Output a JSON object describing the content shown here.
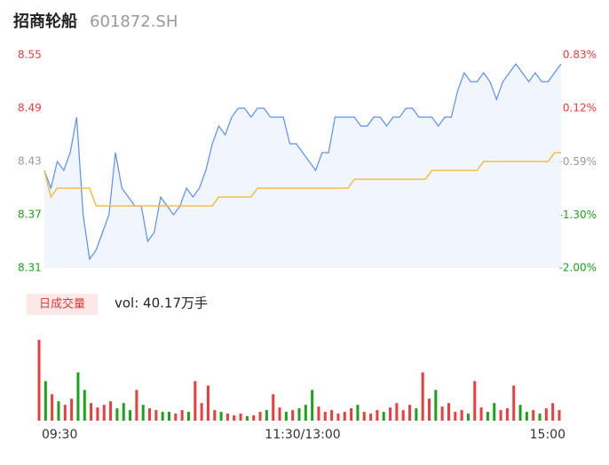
{
  "chart_data": {
    "type": "intraday",
    "title": "招商轮船",
    "subtitle": "601872.SH",
    "price_color": "#5b8ff9",
    "average_color": "#f5bd48",
    "up_color": "#ee3b3b",
    "down_color": "#1aa31a",
    "flat_color": "#999999",
    "ylim": [
      8.31,
      8.55
    ],
    "yticks": [
      8.55,
      8.49,
      8.43,
      8.37,
      8.31
    ],
    "y2lim": [
      -2.0,
      0.83
    ],
    "y2ticks": [
      {
        "value": 0.83,
        "label": "0.83%"
      },
      {
        "value": 0.12,
        "label": "0.12%"
      },
      {
        "value": -0.59,
        "label": "-0.59%"
      },
      {
        "value": -1.3,
        "label": "-1.30%"
      },
      {
        "value": -2.0,
        "label": "-2.00%"
      }
    ],
    "xlim": [
      0,
      80
    ],
    "xticks": [
      {
        "value": 0,
        "label": "09:30"
      },
      {
        "value": 40,
        "label": "11:30/13:00"
      },
      {
        "value": 80,
        "label": "15:00"
      }
    ],
    "price": [
      8.42,
      8.4,
      8.43,
      8.42,
      8.44,
      8.48,
      8.37,
      8.32,
      8.33,
      8.35,
      8.37,
      8.44,
      8.4,
      8.39,
      8.38,
      8.38,
      8.34,
      8.35,
      8.39,
      8.38,
      8.37,
      8.38,
      8.4,
      8.39,
      8.4,
      8.42,
      8.45,
      8.47,
      8.46,
      8.48,
      8.49,
      8.49,
      8.48,
      8.49,
      8.49,
      8.48,
      8.48,
      8.48,
      8.45,
      8.45,
      8.44,
      8.43,
      8.42,
      8.44,
      8.44,
      8.48,
      8.48,
      8.48,
      8.48,
      8.47,
      8.47,
      8.48,
      8.48,
      8.47,
      8.48,
      8.48,
      8.49,
      8.49,
      8.48,
      8.48,
      8.48,
      8.47,
      8.48,
      8.48,
      8.51,
      8.53,
      8.52,
      8.52,
      8.53,
      8.52,
      8.5,
      8.52,
      8.53,
      8.54,
      8.53,
      8.52,
      8.53,
      8.52,
      8.52,
      8.53,
      8.54
    ],
    "average": [
      8.42,
      8.39,
      8.4,
      8.4,
      8.4,
      8.4,
      8.4,
      8.4,
      8.38,
      8.38,
      8.38,
      8.38,
      8.38,
      8.38,
      8.38,
      8.38,
      8.38,
      8.38,
      8.38,
      8.38,
      8.38,
      8.38,
      8.38,
      8.38,
      8.38,
      8.38,
      8.38,
      8.39,
      8.39,
      8.39,
      8.39,
      8.39,
      8.39,
      8.4,
      8.4,
      8.4,
      8.4,
      8.4,
      8.4,
      8.4,
      8.4,
      8.4,
      8.4,
      8.4,
      8.4,
      8.4,
      8.4,
      8.4,
      8.41,
      8.41,
      8.41,
      8.41,
      8.41,
      8.41,
      8.41,
      8.41,
      8.41,
      8.41,
      8.41,
      8.41,
      8.42,
      8.42,
      8.42,
      8.42,
      8.42,
      8.42,
      8.42,
      8.42,
      8.43,
      8.43,
      8.43,
      8.43,
      8.43,
      8.43,
      8.43,
      8.43,
      8.43,
      8.43,
      8.43,
      8.44,
      8.44
    ],
    "volume_label": "日成交量",
    "volume_text": "vol: 40.17万手",
    "volume_ylim": [
      0,
      95
    ],
    "volume": [
      92,
      45,
      30,
      22,
      18,
      25,
      55,
      35,
      20,
      15,
      18,
      22,
      14,
      20,
      12,
      35,
      18,
      14,
      12,
      10,
      10,
      8,
      12,
      10,
      45,
      20,
      40,
      12,
      10,
      8,
      6,
      8,
      5,
      6,
      10,
      12,
      30,
      15,
      10,
      12,
      14,
      18,
      35,
      16,
      10,
      12,
      8,
      10,
      14,
      18,
      10,
      8,
      12,
      10,
      15,
      20,
      12,
      18,
      14,
      55,
      25,
      35,
      16,
      20,
      10,
      12,
      8,
      45,
      15,
      10,
      20,
      12,
      14,
      40,
      18,
      10,
      12,
      8,
      14,
      20,
      12
    ]
  }
}
